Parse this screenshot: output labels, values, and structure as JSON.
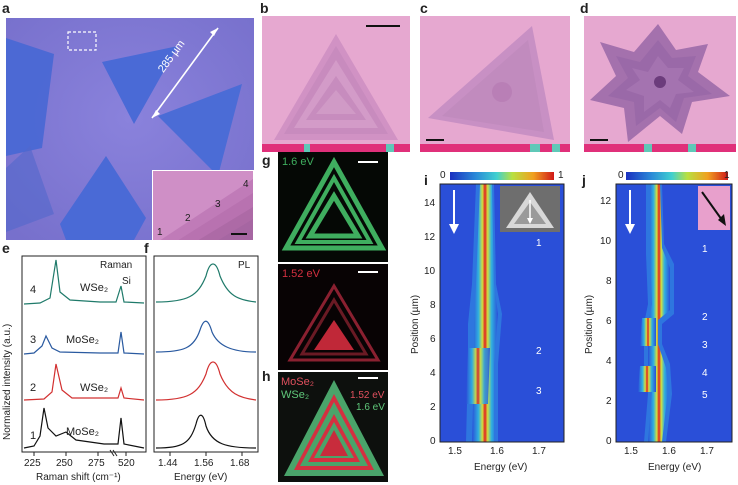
{
  "panels": {
    "a": {
      "letter": "a",
      "length_label": "285 µm",
      "inset_points": [
        "1",
        "2",
        "3",
        "4"
      ]
    },
    "b": {
      "letter": "b"
    },
    "c": {
      "letter": "c"
    },
    "d": {
      "letter": "d"
    },
    "e": {
      "letter": "e",
      "legend": "Raman",
      "si_label": "Si",
      "ylabel": "Normalized intensity (a.u.)",
      "xlabel": "Raman shift (cm⁻¹)",
      "xticks": [
        "225",
        "250",
        "275",
        "520"
      ],
      "traces": [
        {
          "num": "4",
          "label": "WSe₂",
          "color": "#1f7a6a"
        },
        {
          "num": "3",
          "label": "MoSe₂",
          "color": "#2a5aa0"
        },
        {
          "num": "2",
          "label": "WSe₂",
          "color": "#d23030"
        },
        {
          "num": "1",
          "label": "MoSe₂",
          "color": "#111111"
        }
      ]
    },
    "f": {
      "letter": "f",
      "legend": "PL",
      "xlabel": "Energy (eV)",
      "xticks": [
        "1.44",
        "1.56",
        "1.68"
      ]
    },
    "g": {
      "letter": "g",
      "top_label": "1.6 eV",
      "bottom_label": "1.52 eV"
    },
    "h": {
      "letter": "h",
      "legend_mo": "MoSe₂",
      "legend_w": "WSe₂",
      "e1": "1.52 eV",
      "e2": "1.6 eV"
    },
    "i": {
      "letter": "i",
      "cbar_min": "0",
      "cbar_max": "1",
      "ylabel": "Position (µm)",
      "xlabel": "Energy (eV)",
      "yticks": [
        "0",
        "2",
        "4",
        "6",
        "8",
        "10",
        "12",
        "14"
      ],
      "xticks": [
        "1.5",
        "1.6",
        "1.7"
      ],
      "markers": [
        "1",
        "2",
        "3"
      ]
    },
    "j": {
      "letter": "j",
      "cbar_min": "0",
      "cbar_max": "1",
      "ylabel": "Position (µm)",
      "xlabel": "Energy (eV)",
      "yticks": [
        "0",
        "2",
        "4",
        "6",
        "8",
        "10",
        "12"
      ],
      "xticks": [
        "1.5",
        "1.6",
        "1.7"
      ],
      "markers": [
        "1",
        "2",
        "3",
        "4",
        "5"
      ]
    }
  },
  "colors": {
    "substrate_a": "#7f78d4",
    "flake_blue": "#4b6fd8",
    "flake_pink": "#d88fc4",
    "wse2_green": "#3fae5f",
    "mose2_red": "#d43040",
    "heat_bg": "#2a4fd8"
  }
}
